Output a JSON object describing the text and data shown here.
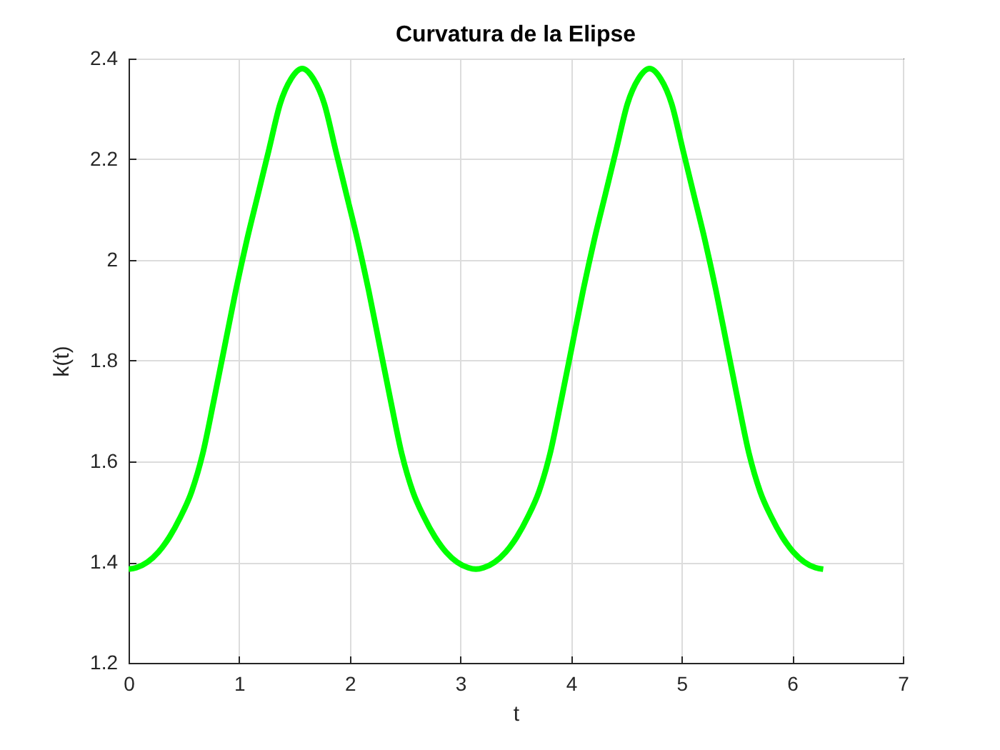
{
  "chart_data": {
    "type": "line",
    "title": "Curvatura de la Elipse",
    "xlabel": "t",
    "ylabel": "k(t)",
    "x": [
      0,
      0.07,
      0.17,
      0.27,
      0.37,
      0.47,
      0.57,
      0.67,
      0.77,
      0.87,
      0.97,
      1.07,
      1.17,
      1.27,
      1.37,
      1.47,
      1.57,
      1.67,
      1.77,
      1.87,
      1.97,
      2.07,
      2.17,
      2.27,
      2.37,
      2.47,
      2.57,
      2.67,
      2.77,
      2.87,
      2.97,
      3.07,
      3.14,
      3.21,
      3.31,
      3.41,
      3.51,
      3.61,
      3.71,
      3.81,
      3.91,
      4.01,
      4.11,
      4.21,
      4.31,
      4.41,
      4.51,
      4.61,
      4.71,
      4.81,
      4.91,
      5.01,
      5.11,
      5.21,
      5.31,
      5.41,
      5.51,
      5.61,
      5.71,
      5.81,
      5.91,
      6.01,
      6.11,
      6.21,
      6.28
    ],
    "series": [
      {
        "color": "#00ff00",
        "values": [
          1.386,
          1.389,
          1.4,
          1.42,
          1.45,
          1.49,
          1.54,
          1.615,
          1.72,
          1.83,
          1.94,
          2.04,
          2.13,
          2.22,
          2.31,
          2.36,
          2.38,
          2.36,
          2.31,
          2.22,
          2.13,
          2.04,
          1.94,
          1.83,
          1.72,
          1.615,
          1.54,
          1.49,
          1.45,
          1.42,
          1.4,
          1.389,
          1.386,
          1.389,
          1.4,
          1.42,
          1.45,
          1.49,
          1.54,
          1.615,
          1.72,
          1.83,
          1.94,
          2.04,
          2.13,
          2.22,
          2.31,
          2.36,
          2.38,
          2.36,
          2.31,
          2.22,
          2.13,
          2.04,
          1.94,
          1.83,
          1.72,
          1.615,
          1.54,
          1.49,
          1.45,
          1.42,
          1.4,
          1.389,
          1.386
        ]
      }
    ],
    "xlim": [
      0,
      7
    ],
    "ylim": [
      1.2,
      2.4
    ],
    "xticks": [
      0,
      1,
      2,
      3,
      4,
      5,
      6,
      7
    ],
    "yticks": [
      1.2,
      1.4,
      1.6,
      1.8,
      2,
      2.2,
      2.4
    ],
    "grid": true,
    "line_style": "solid"
  }
}
